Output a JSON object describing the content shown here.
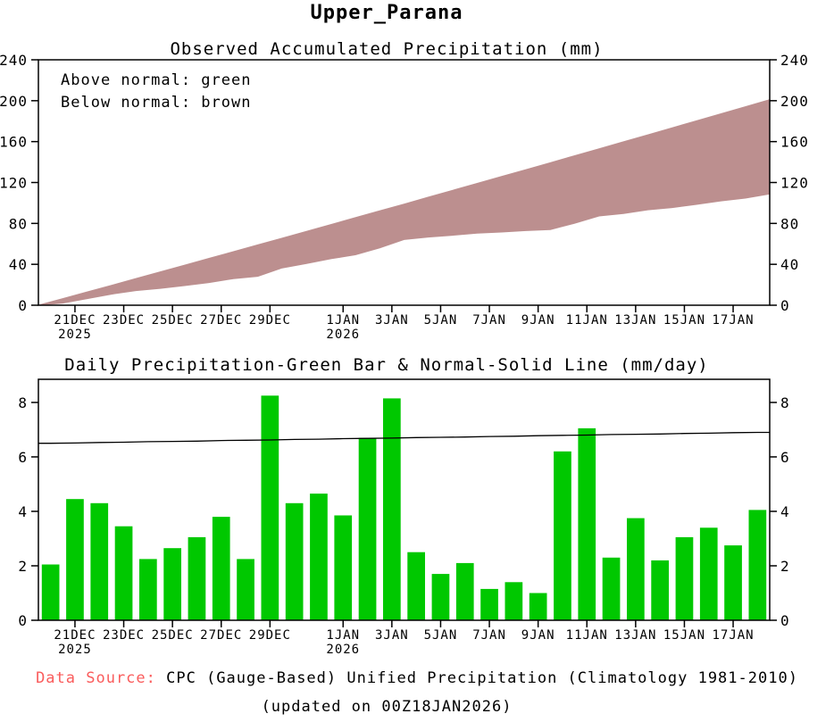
{
  "title": "Upper_Parana",
  "panels": {
    "accum": {
      "title": "Observed Accumulated Precipitation (mm)",
      "legend_lines": [
        "Above normal: green",
        "Below normal: brown"
      ]
    },
    "daily": {
      "title": "Daily Precipitation-Green Bar & Normal-Solid Line (mm/day)"
    }
  },
  "footer": {
    "source_label": "Data Source:",
    "source_text": "CPC (Gauge-Based) Unified Precipitation (Climatology 1981-2010)",
    "updated": "(updated on 00Z18JAN2026)"
  },
  "colors": {
    "bar_green": "#00c800",
    "band_brown": "#bc8f8f",
    "source_red": "#fa5c5c",
    "axis_black": "#000000"
  },
  "xticks": [
    {
      "label": "21DEC",
      "year": "2025",
      "day": 1
    },
    {
      "label": "23DEC",
      "day": 3
    },
    {
      "label": "25DEC",
      "day": 5
    },
    {
      "label": "27DEC",
      "day": 7
    },
    {
      "label": "29DEC",
      "day": 9
    },
    {
      "label": "1JAN",
      "year": "2026",
      "day": 12
    },
    {
      "label": "3JAN",
      "day": 14
    },
    {
      "label": "5JAN",
      "day": 16
    },
    {
      "label": "7JAN",
      "day": 18
    },
    {
      "label": "9JAN",
      "day": 20
    },
    {
      "label": "11JAN",
      "day": 22
    },
    {
      "label": "13JAN",
      "day": 24
    },
    {
      "label": "15JAN",
      "day": 26
    },
    {
      "label": "17JAN",
      "day": 28
    }
  ],
  "chart_data": [
    {
      "type": "area",
      "title": "Observed Accumulated Precipitation (mm)",
      "ylabel": "mm",
      "ylim": [
        0,
        240
      ],
      "yticks": [
        0,
        40,
        80,
        120,
        160,
        200,
        240
      ],
      "grid": false,
      "legend_position": "top-left",
      "band_meaning": "brown shading between accumulated normal (upper edge) and accumulated observed (lower edge); observed is below normal",
      "x": [
        "20DEC2025",
        "21DEC2025",
        "22DEC2025",
        "23DEC2025",
        "24DEC2025",
        "25DEC2025",
        "26DEC2025",
        "27DEC2025",
        "28DEC2025",
        "29DEC2025",
        "30DEC2025",
        "31DEC2025",
        "1JAN2026",
        "2JAN2026",
        "3JAN2026",
        "4JAN2026",
        "5JAN2026",
        "6JAN2026",
        "7JAN2026",
        "8JAN2026",
        "9JAN2026",
        "10JAN2026",
        "11JAN2026",
        "12JAN2026",
        "13JAN2026",
        "14JAN2026",
        "15JAN2026",
        "16JAN2026",
        "17JAN2026",
        "18JAN2026"
      ],
      "series": [
        {
          "name": "accumulated_normal",
          "values": [
            6.5,
            13.0,
            19.5,
            26.1,
            32.6,
            39.2,
            45.8,
            52.4,
            59.0,
            65.6,
            72.3,
            78.9,
            85.6,
            92.3,
            98.9,
            105.7,
            112.4,
            119.1,
            125.9,
            132.6,
            139.4,
            146.2,
            153.0,
            159.8,
            166.6,
            173.5,
            180.3,
            187.2,
            194.1,
            201.0
          ]
        },
        {
          "name": "accumulated_observed",
          "values": [
            2.1,
            6.5,
            10.8,
            14.3,
            16.5,
            19.2,
            22.2,
            26.0,
            28.3,
            36.5,
            40.8,
            45.5,
            49.3,
            56.0,
            64.2,
            66.7,
            68.4,
            70.5,
            71.6,
            73.0,
            74.0,
            80.2,
            87.3,
            89.6,
            93.3,
            95.5,
            98.6,
            102.0,
            104.7,
            108.8
          ]
        }
      ]
    },
    {
      "type": "bar",
      "title": "Daily Precipitation-Green Bar & Normal-Solid Line (mm/day)",
      "ylabel": "mm/day",
      "ylim": [
        0,
        8.85
      ],
      "yticks": [
        0,
        2,
        4,
        6,
        8
      ],
      "grid": false,
      "categories": [
        "20DEC2025",
        "21DEC2025",
        "22DEC2025",
        "23DEC2025",
        "24DEC2025",
        "25DEC2025",
        "26DEC2025",
        "27DEC2025",
        "28DEC2025",
        "29DEC2025",
        "30DEC2025",
        "31DEC2025",
        "1JAN2026",
        "2JAN2026",
        "3JAN2026",
        "4JAN2026",
        "5JAN2026",
        "6JAN2026",
        "7JAN2026",
        "8JAN2026",
        "9JAN2026",
        "10JAN2026",
        "11JAN2026",
        "12JAN2026",
        "13JAN2026",
        "14JAN2026",
        "15JAN2026",
        "16JAN2026",
        "17JAN2026",
        "18JAN2026"
      ],
      "values": [
        2.05,
        4.45,
        4.3,
        3.45,
        2.25,
        2.65,
        3.05,
        3.8,
        2.25,
        8.25,
        4.3,
        4.65,
        3.85,
        6.7,
        8.15,
        2.5,
        1.7,
        2.1,
        1.15,
        1.4,
        1.0,
        6.2,
        7.05,
        2.3,
        3.75,
        2.2,
        3.05,
        3.4,
        2.75,
        4.05
      ],
      "line_series": {
        "name": "normal_daily",
        "values": [
          6.5,
          6.51,
          6.53,
          6.54,
          6.56,
          6.57,
          6.58,
          6.6,
          6.61,
          6.62,
          6.64,
          6.65,
          6.67,
          6.68,
          6.69,
          6.71,
          6.72,
          6.73,
          6.75,
          6.76,
          6.78,
          6.79,
          6.8,
          6.82,
          6.83,
          6.84,
          6.86,
          6.87,
          6.89,
          6.9
        ]
      }
    }
  ]
}
